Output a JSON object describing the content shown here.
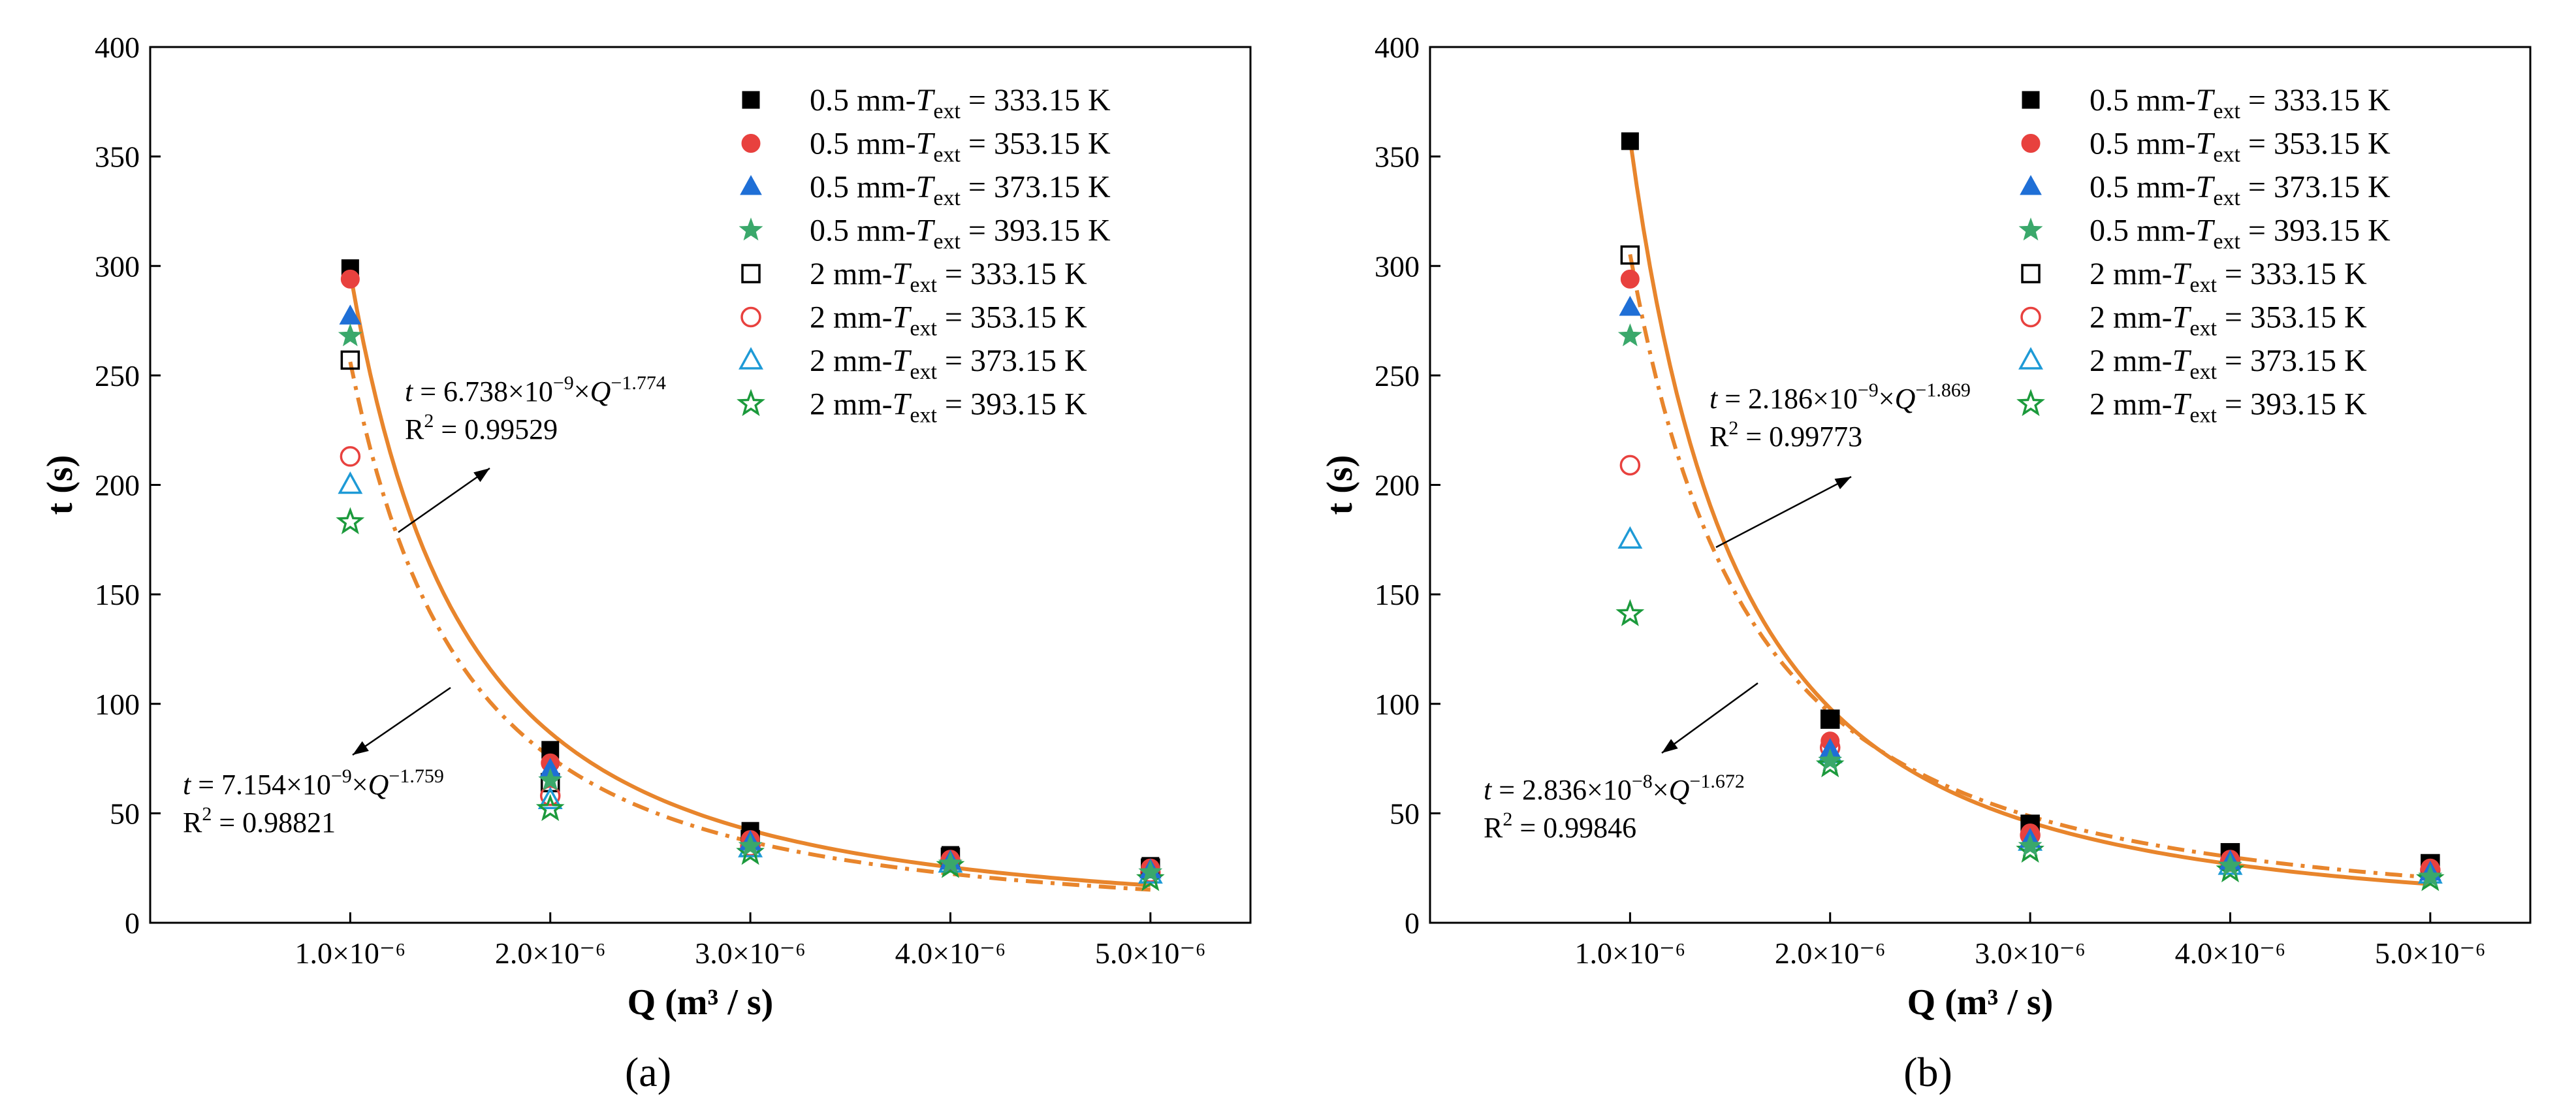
{
  "chart_data": [
    {
      "type": "scatter",
      "panel_label": "(a)",
      "ylabel": "t (s)",
      "xlabel": "Q (m³ / s)",
      "xlim": [
        0,
        5.5e-06
      ],
      "ylim": [
        0,
        400
      ],
      "x_ticks": [
        1e-06,
        2e-06,
        3e-06,
        4e-06,
        5e-06
      ],
      "x_tick_labels": [
        "1.0×10⁻⁶",
        "2.0×10⁻⁶",
        "3.0×10⁻⁶",
        "4.0×10⁻⁶",
        "5.0×10⁻⁶"
      ],
      "y_ticks": [
        0,
        50,
        100,
        150,
        200,
        250,
        300,
        350,
        400
      ],
      "legend_position": "top-right",
      "x": [
        1e-06,
        2e-06,
        3e-06,
        4e-06,
        5e-06
      ],
      "series": [
        {
          "name": "0.5 mm-T_ext = 333.15 K",
          "thickness": "0.5 mm",
          "T": "333.15 K",
          "marker": "square",
          "filled": true,
          "color": "#000000",
          "values": [
            299,
            79,
            42,
            31,
            26
          ]
        },
        {
          "name": "0.5 mm-T_ext = 353.15 K",
          "thickness": "0.5 mm",
          "T": "353.15 K",
          "marker": "circle",
          "filled": true,
          "color": "#e8413e",
          "values": [
            294,
            73,
            38,
            29,
            25
          ]
        },
        {
          "name": "0.5 mm-T_ext = 373.15 K",
          "thickness": "0.5 mm",
          "T": "373.15 K",
          "marker": "triangle",
          "filled": true,
          "color": "#1f6fd6",
          "values": [
            277,
            70,
            37,
            28,
            24
          ]
        },
        {
          "name": "0.5 mm-T_ext = 393.15 K",
          "thickness": "0.5 mm",
          "T": "393.15 K",
          "marker": "star",
          "filled": true,
          "color": "#3aa86b",
          "values": [
            268,
            65,
            35,
            27,
            23
          ]
        },
        {
          "name": "2 mm-T_ext = 333.15 K",
          "thickness": "2 mm",
          "T": "333.15 K",
          "marker": "square",
          "filled": false,
          "color": "#000000",
          "values": [
            257,
            64,
            38,
            30,
            25
          ]
        },
        {
          "name": "2 mm-T_ext = 353.15 K",
          "thickness": "2 mm",
          "T": "353.15 K",
          "marker": "circle",
          "filled": false,
          "color": "#e8413e",
          "values": [
            213,
            58,
            35,
            28,
            23
          ]
        },
        {
          "name": "2 mm-T_ext = 373.15 K",
          "thickness": "2 mm",
          "T": "373.15 K",
          "marker": "triangle",
          "filled": false,
          "color": "#1e9ad6",
          "values": [
            200,
            56,
            34,
            27,
            22
          ]
        },
        {
          "name": "2 mm-T_ext = 393.15 K",
          "thickness": "2 mm",
          "T": "393.15 K",
          "marker": "star",
          "filled": false,
          "color": "#1c9a3c",
          "values": [
            183,
            52,
            32,
            26,
            20
          ]
        }
      ],
      "fits": [
        {
          "style": "solid",
          "color": "#e8852c",
          "coef": 6.738e-09,
          "exp": -1.774,
          "eq_label": "t = 6.738×10⁻⁹×Q⁻¹·⁷⁷⁴",
          "r2_label": "R² = 0.99529",
          "eq_prefix": "t",
          "eq_mid": " = 6.738×10",
          "eq_sup1": "−9",
          "eq_mul": "×",
          "eq_q": "Q",
          "eq_sup2": "−1.774",
          "r2_prefix": "R",
          "r2_sup": "2",
          "r2_value": " = 0.99529"
        },
        {
          "style": "dashdot",
          "color": "#e8852c",
          "coef": 7.154e-09,
          "exp": -1.759,
          "eq_label": "t = 7.154×10⁻⁹×Q⁻¹·⁷⁵⁹",
          "r2_label": "R² = 0.98821",
          "eq_prefix": "t",
          "eq_mid": " = 7.154×10",
          "eq_sup1": "−9",
          "eq_mul": "×",
          "eq_q": "Q",
          "eq_sup2": "−1.759",
          "r2_prefix": "R",
          "r2_sup": "2",
          "r2_value": " = 0.98821"
        }
      ]
    },
    {
      "type": "scatter",
      "panel_label": "(b)",
      "ylabel": "t (s)",
      "xlabel": "Q (m³ / s)",
      "xlim": [
        0,
        5.5e-06
      ],
      "ylim": [
        0,
        400
      ],
      "x_ticks": [
        1e-06,
        2e-06,
        3e-06,
        4e-06,
        5e-06
      ],
      "x_tick_labels": [
        "1.0×10⁻⁶",
        "2.0×10⁻⁶",
        "3.0×10⁻⁶",
        "4.0×10⁻⁶",
        "5.0×10⁻⁶"
      ],
      "y_ticks": [
        0,
        50,
        100,
        150,
        200,
        250,
        300,
        350,
        400
      ],
      "legend_position": "top-right",
      "x": [
        1e-06,
        2e-06,
        3e-06,
        4e-06,
        5e-06
      ],
      "series": [
        {
          "name": "0.5 mm-T_ext = 333.15 K",
          "thickness": "0.5 mm",
          "T": "333.15 K",
          "marker": "square",
          "filled": true,
          "color": "#000000",
          "values": [
            357,
            93,
            45,
            32,
            27
          ]
        },
        {
          "name": "0.5 mm-T_ext = 353.15 K",
          "thickness": "0.5 mm",
          "T": "353.15 K",
          "marker": "circle",
          "filled": true,
          "color": "#e8413e",
          "values": [
            294,
            83,
            41,
            29,
            25
          ]
        },
        {
          "name": "0.5 mm-T_ext = 373.15 K",
          "thickness": "0.5 mm",
          "T": "373.15 K",
          "marker": "triangle",
          "filled": true,
          "color": "#1f6fd6",
          "values": [
            281,
            79,
            38,
            28,
            23
          ]
        },
        {
          "name": "0.5 mm-T_ext = 393.15 K",
          "thickness": "0.5 mm",
          "T": "393.15 K",
          "marker": "star",
          "filled": true,
          "color": "#3aa86b",
          "values": [
            268,
            74,
            35,
            26,
            21
          ]
        },
        {
          "name": "2 mm-T_ext = 333.15 K",
          "thickness": "2 mm",
          "T": "333.15 K",
          "marker": "square",
          "filled": false,
          "color": "#000000",
          "values": [
            305,
            93,
            45,
            32,
            27
          ]
        },
        {
          "name": "2 mm-T_ext = 353.15 K",
          "thickness": "2 mm",
          "T": "353.15 K",
          "marker": "circle",
          "filled": false,
          "color": "#e8413e",
          "values": [
            209,
            80,
            40,
            28,
            24
          ]
        },
        {
          "name": "2 mm-T_ext = 373.15 K",
          "thickness": "2 mm",
          "T": "373.15 K",
          "marker": "triangle",
          "filled": false,
          "color": "#1e9ad6",
          "values": [
            175,
            77,
            37,
            26,
            22
          ]
        },
        {
          "name": "2 mm-T_ext = 393.15 K",
          "thickness": "2 mm",
          "T": "393.15 K",
          "marker": "star",
          "filled": false,
          "color": "#1c9a3c",
          "values": [
            141,
            72,
            33,
            24,
            20
          ]
        }
      ],
      "fits": [
        {
          "style": "solid",
          "color": "#e8852c",
          "coef": 2.186e-09,
          "exp": -1.869,
          "eq_label": "t = 2.186×10⁻⁹×Q⁻¹·⁸⁶⁹",
          "r2_label": "R² = 0.99773",
          "eq_prefix": "t",
          "eq_mid": " = 2.186×10",
          "eq_sup1": "−9",
          "eq_mul": "×",
          "eq_q": "Q",
          "eq_sup2": "−1.869",
          "r2_prefix": "R",
          "r2_sup": "2",
          "r2_value": " = 0.99773"
        },
        {
          "style": "dashdot",
          "color": "#e8852c",
          "coef": 2.836e-08,
          "exp": -1.672,
          "eq_label": "t = 2.836×10⁻⁸×Q⁻¹·⁶⁷²",
          "r2_label": "R² = 0.99846",
          "eq_prefix": "t",
          "eq_mid": " = 2.836×10",
          "eq_sup1": "−8",
          "eq_mul": "×",
          "eq_q": "Q",
          "eq_sup2": "−1.672",
          "r2_prefix": "R",
          "r2_sup": "2",
          "r2_value": " = 0.99846"
        }
      ]
    }
  ]
}
